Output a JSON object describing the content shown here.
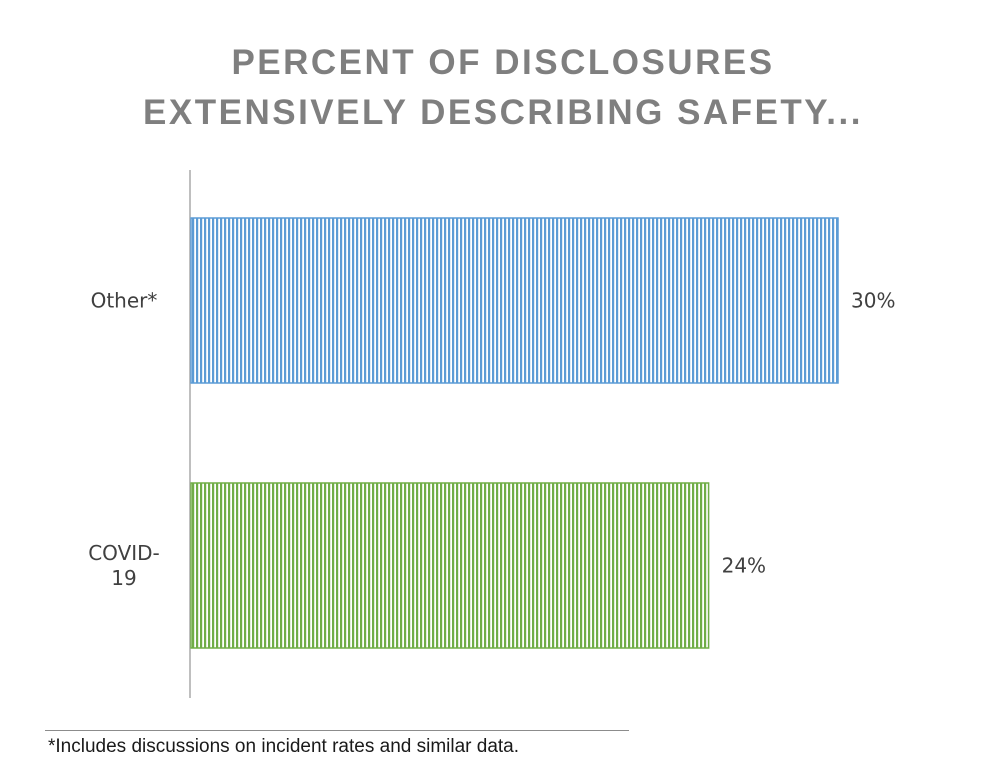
{
  "chart_data": {
    "type": "bar",
    "orientation": "horizontal",
    "title": "PERCENT OF DISCLOSURES EXTENSIVELY DESCRIBING SAFETY...",
    "title_lines": [
      "PERCENT OF DISCLOSURES",
      "EXTENSIVELY DESCRIBING SAFETY..."
    ],
    "categories": [
      "Other*",
      "COVID-19"
    ],
    "category_label_lines": [
      [
        "Other*"
      ],
      [
        "COVID-",
        "19"
      ]
    ],
    "values": [
      30,
      24
    ],
    "value_labels": [
      "30%",
      "24%"
    ],
    "colors": [
      "#5b9bd5",
      "#70ad47"
    ],
    "fill_pattern": "vertical-stripes",
    "xlim": [
      0,
      30
    ],
    "xlabel": "",
    "ylabel": "",
    "grid": false,
    "legend": "none"
  },
  "footnote": "*Includes discussions on incident rates and similar data."
}
